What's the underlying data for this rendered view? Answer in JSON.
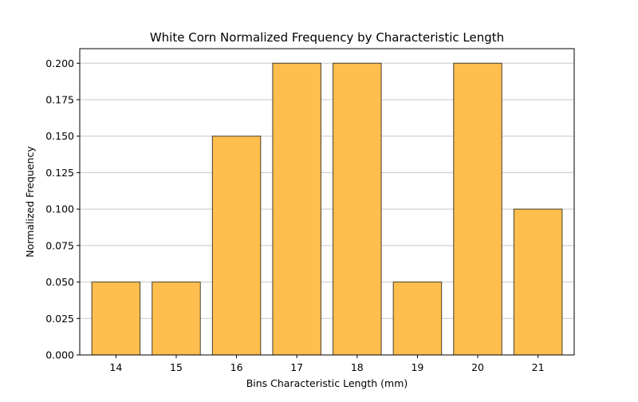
{
  "chart_data": {
    "type": "bar",
    "title": "White Corn Normalized Frequency by Characteristic Length",
    "xlabel": "Bins Characteristic Length (mm)",
    "ylabel": "Normalized Frequency",
    "categories": [
      "14",
      "15",
      "16",
      "17",
      "18",
      "19",
      "20",
      "21"
    ],
    "values": [
      0.05,
      0.05,
      0.15,
      0.2,
      0.2,
      0.05,
      0.2,
      0.1
    ],
    "ylim": [
      0,
      0.21
    ],
    "yticks": [
      "0.000",
      "0.025",
      "0.050",
      "0.075",
      "0.100",
      "0.125",
      "0.150",
      "0.175",
      "0.200"
    ],
    "grid": "horizontal",
    "colors": {
      "bar_fill": "#ffbe4d",
      "bar_edge": "#4a4030",
      "grid": "#c8c8c8",
      "axis": "#000000"
    }
  }
}
